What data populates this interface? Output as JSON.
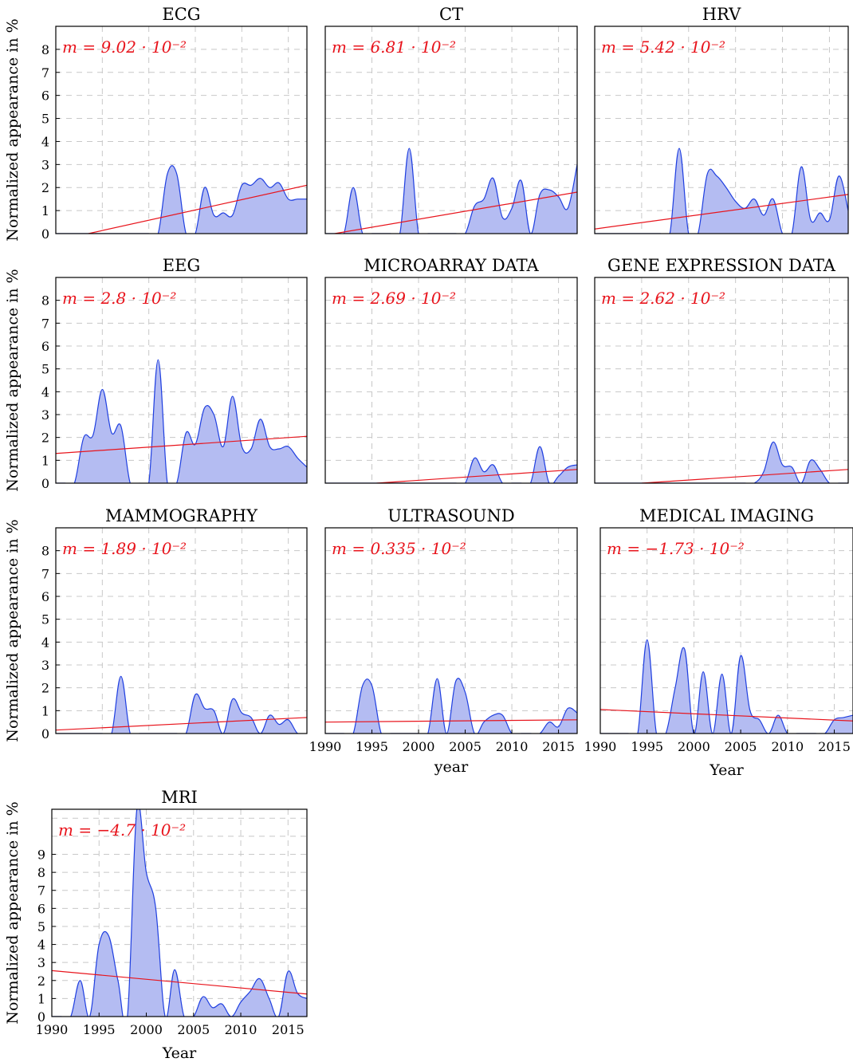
{
  "layout_note": "",
  "chart_data": [
    {
      "type": "area",
      "title": "ECG",
      "slope_label": "m = 9.02 · 10⁻²",
      "xlim": [
        1990,
        2017
      ],
      "ylim": [
        0,
        9
      ],
      "yticks": [
        0,
        1,
        2,
        3,
        4,
        5,
        6,
        7,
        8
      ],
      "xticks": [],
      "ylabel": "Normalized appearance in %",
      "xlabel": "",
      "grid": true,
      "x": [
        1990,
        1991,
        1992,
        1993,
        1994,
        1995,
        1996,
        1997,
        1998,
        1999,
        2000,
        2001,
        2002,
        2003,
        2004,
        2005,
        2006,
        2007,
        2008,
        2009,
        2010,
        2011,
        2012,
        2013,
        2014,
        2015,
        2016,
        2017
      ],
      "values": [
        0,
        0,
        0,
        0,
        0,
        0,
        0,
        0,
        0,
        0,
        0,
        0,
        2.6,
        2.6,
        0,
        0,
        2.0,
        0.8,
        0.9,
        0.8,
        2.1,
        2.1,
        2.4,
        2.0,
        2.2,
        1.5,
        1.5,
        1.5
      ],
      "trend": [
        [
          1993.5,
          0
        ],
        [
          2017,
          2.1
        ]
      ]
    },
    {
      "type": "area",
      "title": "CT",
      "slope_label": "m = 6.81 · 10⁻²",
      "xlim": [
        1990,
        2017
      ],
      "ylim": [
        0,
        9
      ],
      "yticks": [],
      "xticks": [],
      "grid": true,
      "x": [
        1990,
        1991,
        1992,
        1993,
        1994,
        1995,
        1996,
        1997,
        1998,
        1999,
        2000,
        2001,
        2002,
        2003,
        2004,
        2005,
        2006,
        2007,
        2008,
        2009,
        2010,
        2011,
        2012,
        2013,
        2014,
        2015,
        2016,
        2017
      ],
      "values": [
        0,
        0,
        0,
        2.0,
        0,
        0,
        0,
        0,
        0,
        3.7,
        0,
        0,
        0,
        0,
        0,
        0,
        1.2,
        1.5,
        2.4,
        0.7,
        1.1,
        2.3,
        0,
        1.7,
        1.9,
        1.6,
        1.1,
        3.0
      ],
      "trend": [
        [
          1991,
          0
        ],
        [
          2017,
          1.8
        ]
      ]
    },
    {
      "type": "area",
      "title": "HRV",
      "slope_label": "m = 5.42 · 10⁻²",
      "xlim": [
        1990,
        2017
      ],
      "ylim": [
        0,
        9
      ],
      "yticks": [],
      "xticks": [],
      "grid": true,
      "x": [
        1990,
        1991,
        1992,
        1993,
        1994,
        1995,
        1996,
        1997,
        1998,
        1999,
        2000,
        2001,
        2002,
        2003,
        2004,
        2005,
        2006,
        2007,
        2008,
        2009,
        2010,
        2011,
        2012,
        2013,
        2014,
        2015,
        2016,
        2017
      ],
      "values": [
        0,
        0,
        0,
        0,
        0,
        0,
        0,
        0,
        0,
        3.7,
        0,
        0,
        2.6,
        2.5,
        2.0,
        1.4,
        1.1,
        1.5,
        0.8,
        1.5,
        0,
        0,
        2.9,
        0.6,
        0.9,
        0.6,
        2.5,
        1.0
      ],
      "trend": [
        [
          1990,
          0.2
        ],
        [
          2017,
          1.7
        ]
      ]
    },
    {
      "type": "area",
      "title": "EEG",
      "slope_label": "m = 2.8 · 10⁻²",
      "xlim": [
        1990,
        2017
      ],
      "ylim": [
        0,
        9
      ],
      "yticks": [
        0,
        1,
        2,
        3,
        4,
        5,
        6,
        7,
        8
      ],
      "xticks": [],
      "ylabel": "Normalized appearance in %",
      "grid": true,
      "x": [
        1990,
        1991,
        1992,
        1993,
        1994,
        1995,
        1996,
        1997,
        1998,
        1999,
        2000,
        2001,
        2002,
        2003,
        2004,
        2005,
        2006,
        2007,
        2008,
        2009,
        2010,
        2011,
        2012,
        2013,
        2014,
        2015,
        2016,
        2017
      ],
      "values": [
        0,
        0,
        0,
        2.0,
        2.1,
        4.1,
        2.2,
        2.5,
        0,
        0,
        0,
        5.4,
        0,
        0,
        2.2,
        1.7,
        3.3,
        3.0,
        1.6,
        3.8,
        1.6,
        1.5,
        2.8,
        1.6,
        1.5,
        1.6,
        1.1,
        0.7
      ],
      "trend": [
        [
          1990,
          1.3
        ],
        [
          2017,
          2.05
        ]
      ]
    },
    {
      "type": "area",
      "title": "MICROARRAY DATA",
      "slope_label": "m = 2.69 · 10⁻²",
      "xlim": [
        1990,
        2017
      ],
      "ylim": [
        0,
        9
      ],
      "yticks": [],
      "xticks": [],
      "grid": true,
      "x": [
        1990,
        1991,
        1992,
        1993,
        1994,
        1995,
        1996,
        1997,
        1998,
        1999,
        2000,
        2001,
        2002,
        2003,
        2004,
        2005,
        2006,
        2007,
        2008,
        2009,
        2010,
        2011,
        2012,
        2013,
        2014,
        2015,
        2016,
        2017
      ],
      "values": [
        0,
        0,
        0,
        0,
        0,
        0,
        0,
        0,
        0,
        0,
        0,
        0,
        0,
        0,
        0,
        0,
        1.1,
        0.5,
        0.8,
        0,
        0,
        0,
        0,
        1.6,
        0,
        0.3,
        0.7,
        0.8
      ],
      "trend": [
        [
          1995.5,
          0
        ],
        [
          2017,
          0.6
        ]
      ]
    },
    {
      "type": "area",
      "title": "GENE EXPRESSION DATA",
      "slope_label": "m = 2.62 · 10⁻²",
      "xlim": [
        1990,
        2017
      ],
      "ylim": [
        0,
        9
      ],
      "yticks": [],
      "xticks": [],
      "grid": true,
      "x": [
        1990,
        1991,
        1992,
        1993,
        1994,
        1995,
        1996,
        1997,
        1998,
        1999,
        2000,
        2001,
        2002,
        2003,
        2004,
        2005,
        2006,
        2007,
        2008,
        2009,
        2010,
        2011,
        2012,
        2013,
        2014,
        2015,
        2016,
        2017
      ],
      "values": [
        0,
        0,
        0,
        0,
        0,
        0,
        0,
        0,
        0,
        0,
        0,
        0,
        0,
        0,
        0,
        0,
        0,
        0,
        0.5,
        1.8,
        0.8,
        0.7,
        0,
        1.0,
        0.6,
        0,
        0,
        0
      ],
      "trend": [
        [
          1995,
          0
        ],
        [
          2017,
          0.6
        ]
      ]
    },
    {
      "type": "area",
      "title": "MAMMOGRAPHY",
      "slope_label": "m = 1.89 · 10⁻²",
      "xlim": [
        1990,
        2017
      ],
      "ylim": [
        0,
        9
      ],
      "yticks": [
        0,
        1,
        2,
        3,
        4,
        5,
        6,
        7,
        8
      ],
      "xticks": [],
      "ylabel": "Normalized appearance in %",
      "grid": true,
      "x": [
        1990,
        1991,
        1992,
        1993,
        1994,
        1995,
        1996,
        1997,
        1998,
        1999,
        2000,
        2001,
        2002,
        2003,
        2004,
        2005,
        2006,
        2007,
        2008,
        2009,
        2010,
        2011,
        2012,
        2013,
        2014,
        2015,
        2016,
        2017
      ],
      "values": [
        0,
        0,
        0,
        0,
        0,
        0,
        0,
        2.5,
        0,
        0,
        0,
        0,
        0,
        0,
        0,
        1.7,
        1.1,
        1.0,
        0,
        1.5,
        0.9,
        0.7,
        0,
        0.8,
        0.4,
        0.6,
        0,
        0
      ],
      "trend": [
        [
          1990,
          0.15
        ],
        [
          2017,
          0.7
        ]
      ]
    },
    {
      "type": "area",
      "title": "ULTRASOUND",
      "slope_label": "m = 0.335 · 10⁻²",
      "xlim": [
        1990,
        2017
      ],
      "ylim": [
        0,
        9
      ],
      "yticks": [],
      "xticks": [
        1990,
        1995,
        2000,
        2005,
        2010,
        2015
      ],
      "xlabel": "year",
      "grid": true,
      "x": [
        1990,
        1991,
        1992,
        1993,
        1994,
        1995,
        1996,
        1997,
        1998,
        1999,
        2000,
        2001,
        2002,
        2003,
        2004,
        2005,
        2006,
        2007,
        2008,
        2009,
        2010,
        2011,
        2012,
        2013,
        2014,
        2015,
        2016,
        2017
      ],
      "values": [
        0,
        0,
        0,
        0,
        2.1,
        2.1,
        0,
        0,
        0,
        0,
        0,
        0,
        2.4,
        0,
        2.3,
        1.8,
        0,
        0.5,
        0.8,
        0.8,
        0,
        0,
        0,
        0,
        0.5,
        0.3,
        1.1,
        0.9
      ],
      "trend": [
        [
          1990,
          0.5
        ],
        [
          2017,
          0.6
        ]
      ]
    },
    {
      "type": "area",
      "title": "MEDICAL IMAGING",
      "slope_label": "m = −1.73 · 10⁻²",
      "xlim": [
        1990,
        2017
      ],
      "ylim": [
        0,
        9
      ],
      "yticks": [],
      "xticks": [
        1990,
        1995,
        2000,
        2005,
        2010,
        2015
      ],
      "xlabel": "Year",
      "grid": true,
      "x": [
        1990,
        1991,
        1992,
        1993,
        1994,
        1995,
        1996,
        1997,
        1998,
        1999,
        2000,
        2001,
        2002,
        2003,
        2004,
        2005,
        2006,
        2007,
        2008,
        2009,
        2010,
        2011,
        2012,
        2013,
        2014,
        2015,
        2016,
        2017
      ],
      "values": [
        0,
        0,
        0,
        0,
        0,
        4.1,
        0,
        0,
        2.0,
        3.7,
        0,
        2.7,
        0,
        2.6,
        0,
        3.4,
        1.0,
        0.6,
        0,
        0.8,
        0,
        0,
        0,
        0,
        0,
        0.6,
        0.7,
        0.8
      ],
      "trend": [
        [
          1990,
          1.05
        ],
        [
          2017,
          0.55
        ]
      ]
    },
    {
      "type": "area",
      "title": "MRI",
      "slope_label": "m = −4.7 · 10⁻²",
      "xlim": [
        1990,
        2017
      ],
      "ylim": [
        0,
        11.5
      ],
      "yticks": [
        0,
        1,
        2,
        3,
        4,
        5,
        6,
        7,
        8,
        9
      ],
      "xticks": [
        1990,
        1995,
        2000,
        2005,
        2010,
        2015
      ],
      "ylabel": "Normalized appearance in %",
      "xlabel": "Year",
      "grid": true,
      "x": [
        1990,
        1991,
        1992,
        1993,
        1994,
        1995,
        1996,
        1997,
        1998,
        1999,
        2000,
        2001,
        2002,
        2003,
        2004,
        2005,
        2006,
        2007,
        2008,
        2009,
        2010,
        2011,
        2012,
        2013,
        2014,
        2015,
        2016,
        2017
      ],
      "values": [
        0,
        0,
        0,
        2.0,
        0,
        4.0,
        4.5,
        2.0,
        0,
        11.5,
        8.0,
        6.0,
        0,
        2.6,
        0,
        0,
        1.1,
        0.5,
        0.7,
        0,
        0.8,
        1.4,
        2.1,
        1.0,
        0,
        2.5,
        1.3,
        1.0
      ],
      "trend": [
        [
          1990,
          2.55
        ],
        [
          2017,
          1.25
        ]
      ]
    }
  ]
}
